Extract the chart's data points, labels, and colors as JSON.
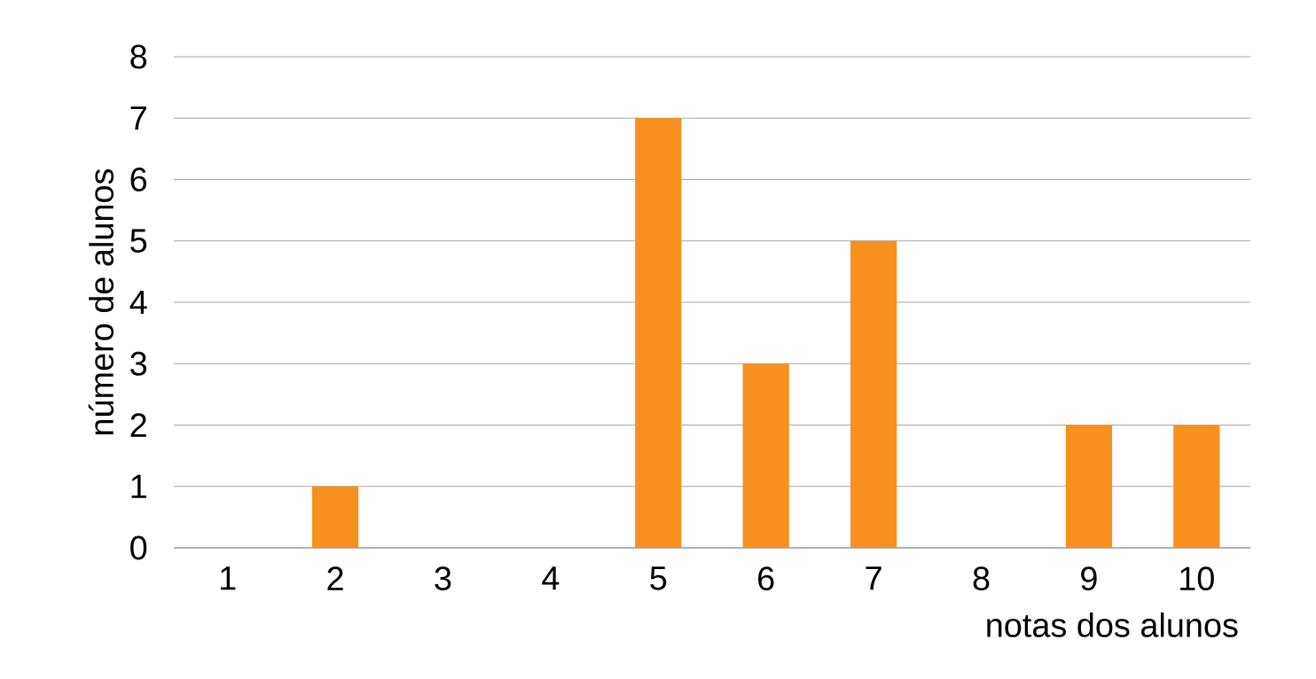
{
  "chart_data": {
    "type": "bar",
    "xlabel": "notas dos alunos",
    "ylabel": "número de alunos",
    "categories": [
      "1",
      "2",
      "3",
      "4",
      "5",
      "6",
      "7",
      "8",
      "9",
      "10"
    ],
    "values": [
      0,
      1,
      0,
      0,
      7,
      3,
      5,
      0,
      2,
      2
    ],
    "color": "#f7901e",
    "ylim": [
      0,
      8
    ],
    "yticks": [
      0,
      1,
      2,
      3,
      4,
      5,
      6,
      7,
      8
    ],
    "grid": "y"
  }
}
